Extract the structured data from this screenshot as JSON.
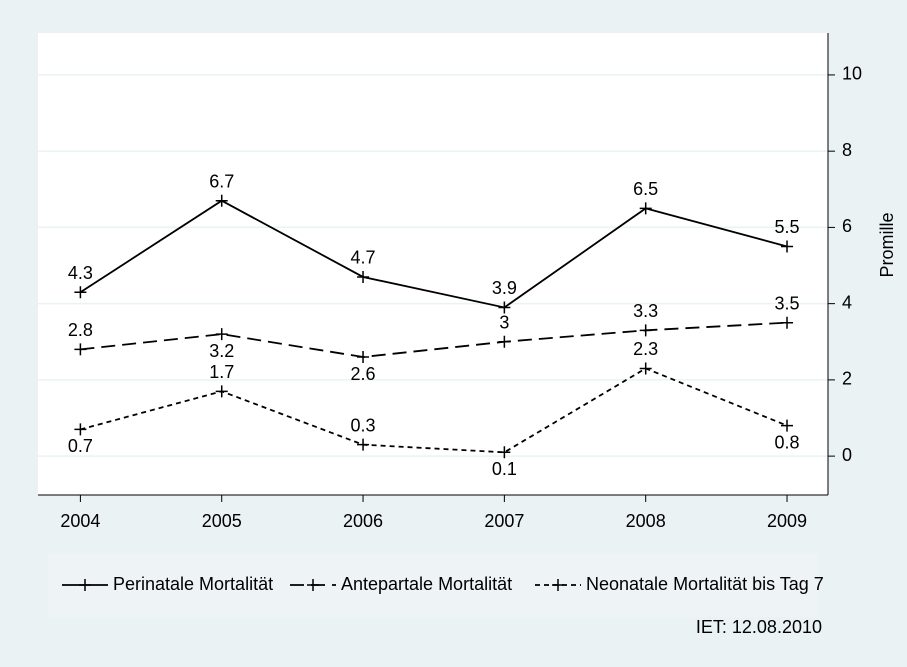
{
  "chart_data": {
    "type": "line",
    "x": [
      2004,
      2005,
      2006,
      2007,
      2008,
      2009
    ],
    "xlim": [
      2003.7,
      2009.29
    ],
    "xticks": [
      2004,
      2005,
      2006,
      2007,
      2008,
      2009
    ],
    "ylim": [
      -1.02,
      11.1
    ],
    "yticks": [
      0,
      2,
      4,
      6,
      8,
      10
    ],
    "ylabel": "Promille",
    "grid": true,
    "series": [
      {
        "name": "Perinatale Mortalität",
        "color": "#000000",
        "dash": "solid",
        "values": [
          4.3,
          6.7,
          4.7,
          3.9,
          6.5,
          5.5
        ]
      },
      {
        "name": "Antepartale Mortalität",
        "color": "#000000",
        "dash": "long",
        "values": [
          2.8,
          3.2,
          2.6,
          3.0,
          3.3,
          3.5
        ]
      },
      {
        "name": "Neonatale Mortalität bis Tag 7",
        "color": "#000000",
        "dash": "short",
        "values": [
          0.7,
          1.7,
          0.3,
          0.1,
          2.3,
          0.8
        ]
      }
    ],
    "note": "IET: 12.08.2010"
  }
}
